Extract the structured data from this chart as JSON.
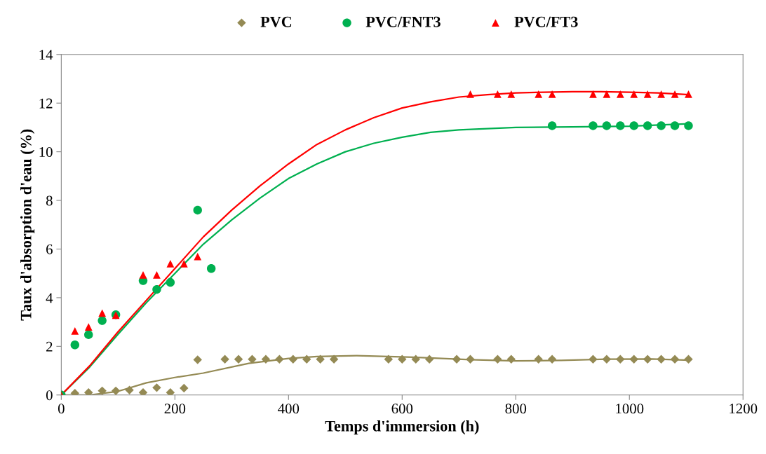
{
  "chart_data": {
    "type": "scatter",
    "xlabel": "Temps d'immersion (h)",
    "ylabel": "Taux d'absorption d'eau (%)",
    "xlim": [
      0,
      1200
    ],
    "xticks": [
      0,
      200,
      400,
      600,
      800,
      1000,
      1200
    ],
    "ylim": [
      0,
      14
    ],
    "yticks": [
      0,
      2,
      4,
      6,
      8,
      10,
      12,
      14
    ],
    "grid": false,
    "legend": "top",
    "series": [
      {
        "name": "PVC",
        "marker": "diamond",
        "color": "#948a54",
        "x": [
          0,
          24,
          48,
          72,
          96,
          120,
          144,
          168,
          192,
          216,
          240,
          288,
          312,
          336,
          360,
          384,
          408,
          432,
          456,
          480,
          576,
          600,
          624,
          648,
          696,
          720,
          768,
          792,
          840,
          864,
          936,
          960,
          984,
          1008,
          1032,
          1056,
          1080,
          1104
        ],
        "values": [
          0,
          0.07,
          0.1,
          0.17,
          0.17,
          0.2,
          0.1,
          0.3,
          0.1,
          0.28,
          1.45,
          1.47,
          1.47,
          1.47,
          1.47,
          1.47,
          1.47,
          1.47,
          1.47,
          1.47,
          1.47,
          1.47,
          1.47,
          1.47,
          1.47,
          1.47,
          1.47,
          1.47,
          1.47,
          1.47,
          1.47,
          1.47,
          1.47,
          1.47,
          1.47,
          1.47,
          1.47,
          1.47
        ]
      },
      {
        "name": "PVC/FNT3",
        "marker": "circle",
        "color": "#00b050",
        "x": [
          0,
          24,
          48,
          72,
          96,
          144,
          168,
          192,
          240,
          264,
          864,
          936,
          960,
          984,
          1008,
          1032,
          1056,
          1080,
          1104
        ],
        "values": [
          0,
          2.06,
          2.48,
          3.06,
          3.3,
          4.7,
          4.34,
          4.63,
          7.6,
          5.2,
          11.07,
          11.07,
          11.07,
          11.07,
          11.07,
          11.07,
          11.07,
          11.07,
          11.07
        ]
      },
      {
        "name": "PVC/FT3",
        "marker": "triangle",
        "color": "#ff0000",
        "x": [
          0,
          24,
          48,
          72,
          96,
          144,
          168,
          192,
          216,
          240,
          720,
          768,
          792,
          840,
          864,
          936,
          960,
          984,
          1008,
          1032,
          1056,
          1080,
          1104
        ],
        "values": [
          0,
          2.63,
          2.8,
          3.37,
          3.28,
          4.94,
          4.94,
          5.4,
          5.4,
          5.69,
          12.37,
          12.37,
          12.37,
          12.37,
          12.37,
          12.37,
          12.37,
          12.37,
          12.37,
          12.37,
          12.37,
          12.37,
          12.37
        ]
      },
      {
        "type": "line",
        "color": "#948a54",
        "x": [
          0,
          50,
          100,
          150,
          200,
          250,
          330,
          400,
          450,
          520,
          620,
          720,
          800,
          880,
          960,
          1040,
          1104
        ],
        "values": [
          0,
          0,
          0.15,
          0.5,
          0.72,
          0.9,
          1.3,
          1.5,
          1.58,
          1.62,
          1.55,
          1.45,
          1.4,
          1.42,
          1.47,
          1.48,
          1.43
        ]
      },
      {
        "type": "line",
        "color": "#00b050",
        "x": [
          0,
          50,
          100,
          150,
          200,
          250,
          300,
          350,
          400,
          450,
          500,
          550,
          600,
          650,
          700,
          750,
          800,
          900,
          1000,
          1104
        ],
        "values": [
          0,
          1.15,
          2.5,
          3.8,
          5.0,
          6.2,
          7.2,
          8.1,
          8.9,
          9.5,
          10.0,
          10.35,
          10.6,
          10.8,
          10.9,
          10.95,
          11.0,
          11.02,
          11.05,
          11.15
        ]
      },
      {
        "type": "line",
        "color": "#ff0000",
        "x": [
          0,
          50,
          100,
          150,
          200,
          250,
          300,
          350,
          400,
          450,
          500,
          550,
          600,
          650,
          700,
          750,
          800,
          850,
          900,
          950,
          1000,
          1050,
          1104
        ],
        "values": [
          0,
          1.2,
          2.6,
          3.9,
          5.2,
          6.5,
          7.6,
          8.6,
          9.5,
          10.3,
          10.9,
          11.4,
          11.8,
          12.05,
          12.25,
          12.35,
          12.42,
          12.45,
          12.47,
          12.47,
          12.45,
          12.42,
          12.35
        ]
      }
    ]
  }
}
